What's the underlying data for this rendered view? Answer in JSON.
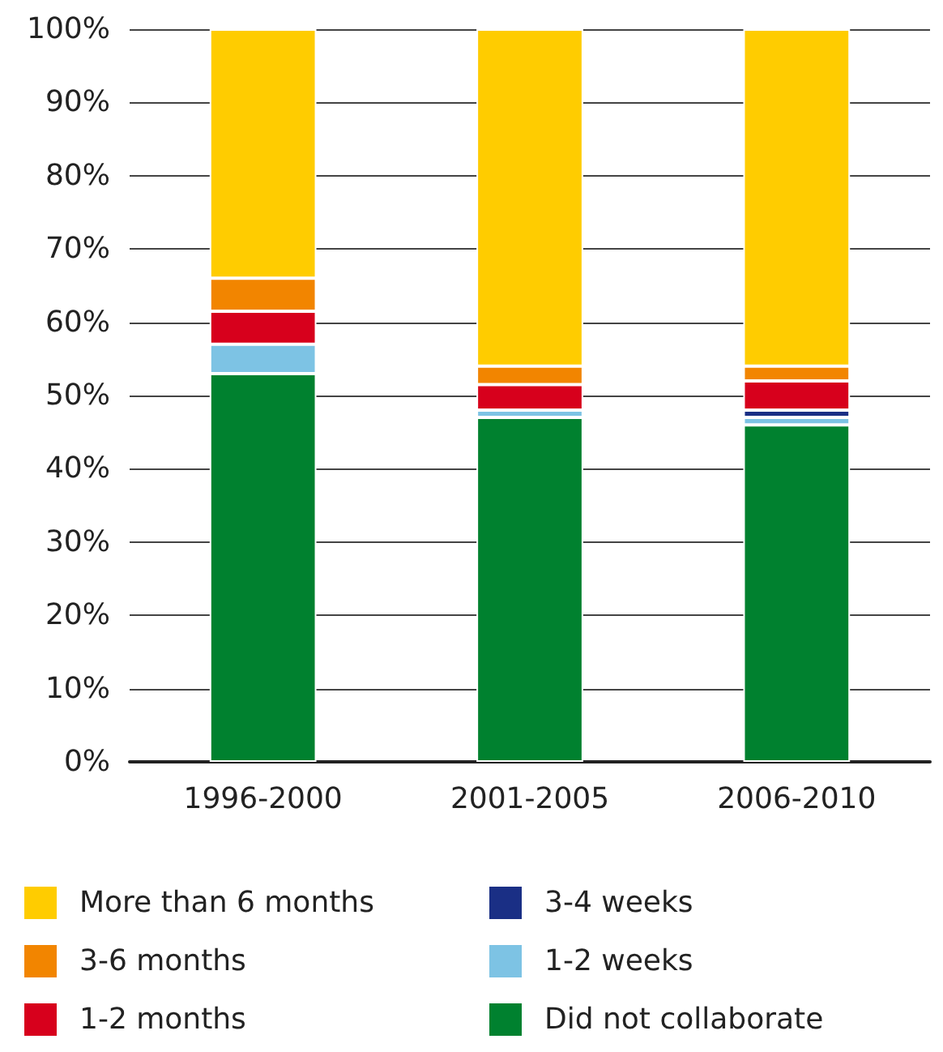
{
  "chart_data": {
    "type": "bar",
    "stacked": true,
    "categories": [
      "1996-2000",
      "2001-2005",
      "2006-2010"
    ],
    "series": [
      {
        "name": "Did not collaborate",
        "color": "#00812f",
        "values": [
          53,
          47,
          46
        ]
      },
      {
        "name": "1-2 weeks",
        "color": "#7dc3e4",
        "values": [
          4,
          1,
          1
        ]
      },
      {
        "name": "3-4 weeks",
        "color": "#1a2f85",
        "values": [
          0,
          0,
          1
        ]
      },
      {
        "name": "1-2 months",
        "color": "#d7001c",
        "values": [
          4.5,
          3.5,
          4
        ]
      },
      {
        "name": "3-6 months",
        "color": "#f28500",
        "values": [
          4.5,
          2.5,
          2
        ]
      },
      {
        "name": "More than 6 months",
        "color": "#ffcc00",
        "values": [
          34,
          46,
          46
        ]
      }
    ],
    "ylim": [
      0,
      100
    ],
    "yticks": [
      {
        "value": 0,
        "label": "0%"
      },
      {
        "value": 10,
        "label": "10%"
      },
      {
        "value": 20,
        "label": "20%"
      },
      {
        "value": 30,
        "label": "30%"
      },
      {
        "value": 40,
        "label": "40%"
      },
      {
        "value": 50,
        "label": "50%"
      },
      {
        "value": 60,
        "label": "60%"
      },
      {
        "value": 70,
        "label": "70%"
      },
      {
        "value": 80,
        "label": "80%"
      },
      {
        "value": 90,
        "label": "90%"
      },
      {
        "value": 100,
        "label": "100%"
      }
    ],
    "grid": "y",
    "legend": "bottom"
  }
}
